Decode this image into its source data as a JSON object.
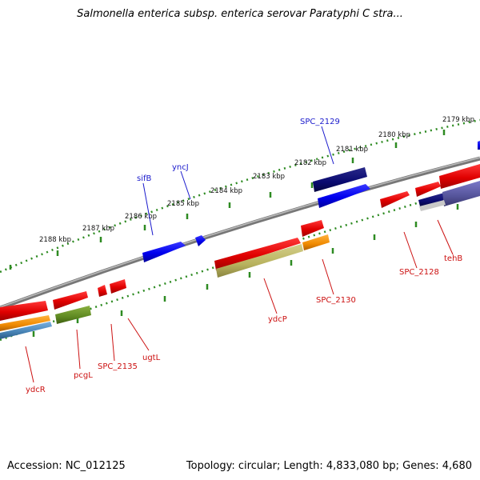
{
  "title": "Salmonella enterica subsp. enterica serovar Paratyphi C stra...",
  "footer": {
    "accession": "Accession: NC_012125",
    "topology": "Topology: circular; Length: 4,833,080 bp; Genes: 4,680"
  },
  "colors": {
    "background": "#ffffff",
    "tick": "#2e8b22",
    "backbone": "#888888",
    "label_forward": "#1a1acc",
    "label_reverse": "#cc1111"
  },
  "kbp_labels": [
    "2179 kbp",
    "2180 kbp",
    "2181 kbp",
    "2182 kbp",
    "2183 kbp",
    "2184 kbp",
    "2185 kbp",
    "2186 kbp",
    "2187 kbp",
    "2188 kbp"
  ],
  "gene_labels": {
    "SPC_2129": "SPC_2129",
    "sifB": "sifB",
    "yncJ": "yncJ",
    "SPC_2128": "SPC_2128",
    "tehB": "tehB",
    "SPC_2130": "SPC_2130",
    "ydcP": "ydcP",
    "ugtL": "ugtL",
    "SPC_2135": "SPC_2135",
    "pcgL": "pcgL",
    "ydcR": "ydcR"
  }
}
